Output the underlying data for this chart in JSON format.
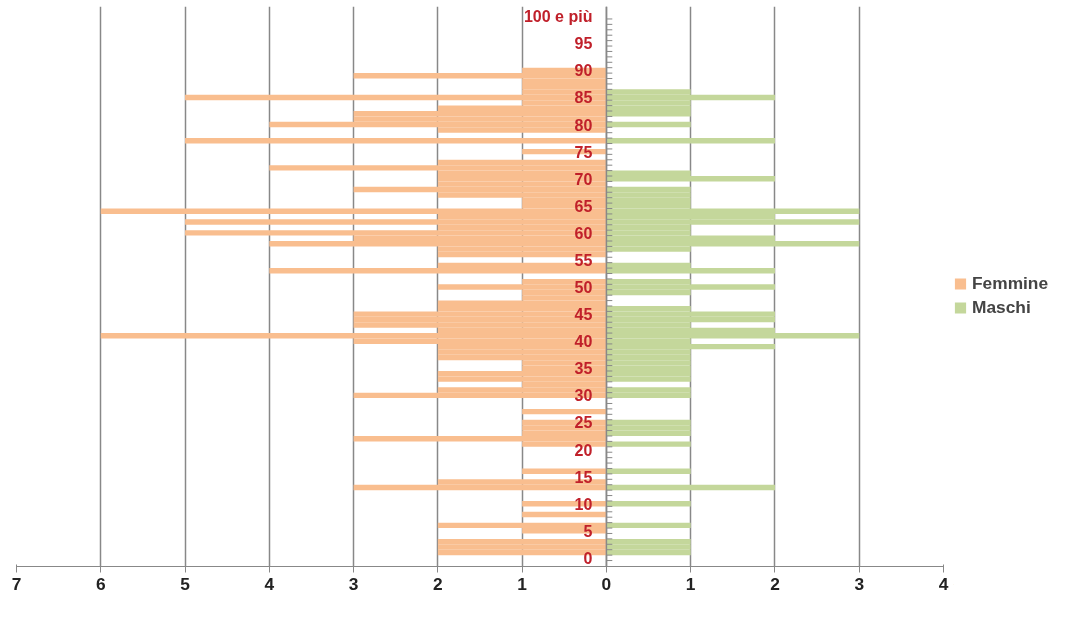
{
  "chart_data": {
    "type": "bar",
    "orientation": "horizontal",
    "stacked": true,
    "categories": [
      "100 e più",
      null,
      null,
      null,
      null,
      "95",
      null,
      null,
      null,
      null,
      "90",
      null,
      null,
      null,
      null,
      "85",
      null,
      null,
      null,
      null,
      "80",
      null,
      null,
      null,
      null,
      "75",
      null,
      null,
      null,
      null,
      "70",
      null,
      null,
      null,
      null,
      "65",
      null,
      null,
      null,
      null,
      "60",
      null,
      null,
      null,
      null,
      "55",
      null,
      null,
      null,
      null,
      "50",
      null,
      null,
      null,
      null,
      "45",
      null,
      null,
      null,
      null,
      "40",
      null,
      null,
      null,
      null,
      "35",
      null,
      null,
      null,
      null,
      "30",
      null,
      null,
      null,
      null,
      "25",
      null,
      null,
      null,
      null,
      "20",
      null,
      null,
      null,
      null,
      "15",
      null,
      null,
      null,
      null,
      "10",
      null,
      null,
      null,
      null,
      "5",
      null,
      null,
      null,
      null,
      "0"
    ],
    "series": [
      {
        "name": "Femmine",
        "color": "#f9be8f",
        "values": [
          0,
          0,
          0,
          0,
          0,
          0,
          0,
          0,
          0,
          0,
          -1,
          -3,
          -1,
          -1,
          -1,
          -5,
          -1,
          -2,
          -3,
          -3,
          -4,
          -2,
          0,
          -5,
          0,
          -1,
          0,
          -2,
          -4,
          -2,
          -2,
          -2,
          -3,
          -2,
          -1,
          -1,
          -6,
          -2,
          -5,
          -2,
          -5,
          -3,
          -4,
          -2,
          -2,
          0,
          -2,
          -4,
          0,
          -1,
          -2,
          -1,
          -1,
          -2,
          -2,
          -3,
          -3,
          -3,
          -2,
          -6,
          -3,
          -2,
          -2,
          -2,
          -1,
          -1,
          -2,
          -2,
          -1,
          -2,
          -3,
          0,
          0,
          -1,
          0,
          -1,
          -1,
          -1,
          -3,
          -1,
          0,
          0,
          0,
          0,
          -1,
          0,
          -2,
          -3,
          0,
          0,
          -1,
          0,
          -1,
          0,
          -2,
          -1,
          0,
          -2,
          -2,
          -2,
          0
        ]
      },
      {
        "name": "Maschi",
        "color": "#c4d79b",
        "values": [
          0,
          0,
          0,
          0,
          0,
          0,
          0,
          0,
          0,
          0,
          0,
          0,
          0,
          0,
          1,
          2,
          1,
          1,
          1,
          0,
          1,
          0,
          0,
          2,
          0,
          0,
          0,
          0,
          0,
          1,
          2,
          0,
          1,
          1,
          1,
          1,
          3,
          2,
          3,
          1,
          1,
          2,
          3,
          1,
          0,
          0,
          1,
          2,
          0,
          1,
          2,
          1,
          0,
          0,
          1,
          2,
          2,
          1,
          2,
          3,
          1,
          2,
          1,
          1,
          1,
          1,
          1,
          1,
          0,
          1,
          1,
          0,
          0,
          0,
          0,
          1,
          1,
          1,
          0,
          1,
          0,
          0,
          0,
          0,
          1,
          0,
          0,
          2,
          0,
          0,
          1,
          0,
          0,
          0,
          1,
          0,
          0,
          1,
          1,
          1,
          0
        ]
      }
    ],
    "xlim": [
      -7,
      4
    ],
    "xticks": [
      {
        "value": -7,
        "label": "7"
      },
      {
        "value": -6,
        "label": "6"
      },
      {
        "value": -5,
        "label": "5"
      },
      {
        "value": -4,
        "label": "4"
      },
      {
        "value": -3,
        "label": "3"
      },
      {
        "value": -2,
        "label": "2"
      },
      {
        "value": -1,
        "label": "1"
      },
      0,
      1,
      2,
      3,
      4
    ],
    "grid": "x",
    "legend": "right"
  }
}
